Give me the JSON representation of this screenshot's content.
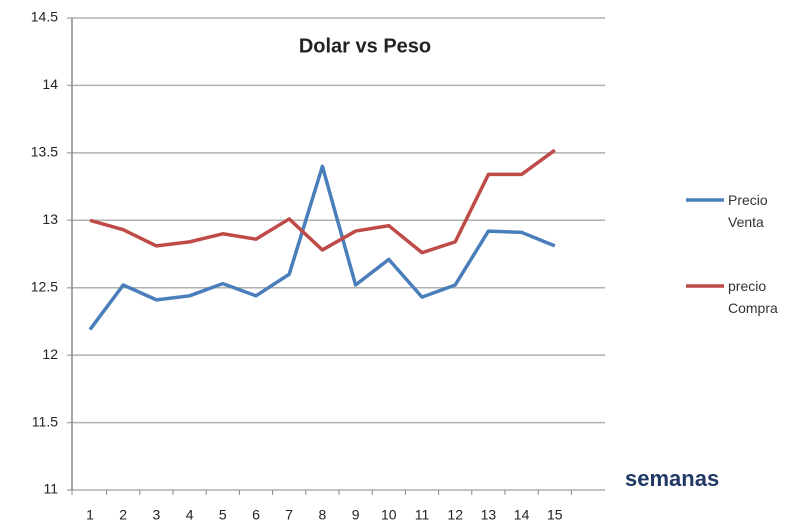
{
  "chart_data": {
    "type": "line",
    "title": "Dolar vs Peso",
    "x_label": "semanas",
    "categories": [
      "1",
      "2",
      "3",
      "4",
      "5",
      "6",
      "7",
      "8",
      "9",
      "10",
      "11",
      "12",
      "13",
      "14",
      "15"
    ],
    "series": [
      {
        "name": "Precio Venta",
        "color": "#4a7ebb",
        "values": [
          12.19,
          12.52,
          12.41,
          12.44,
          12.53,
          12.44,
          12.6,
          13.4,
          12.52,
          12.71,
          12.43,
          12.52,
          12.92,
          12.91,
          12.81
        ]
      },
      {
        "name": "precio Compra",
        "color": "#be4b48",
        "values": [
          13.0,
          12.93,
          12.81,
          12.84,
          12.9,
          12.86,
          13.01,
          12.78,
          12.92,
          12.96,
          12.76,
          12.84,
          13.34,
          13.34,
          13.52
        ]
      }
    ],
    "ylim": [
      11,
      14.5
    ],
    "yticks": [
      11,
      11.5,
      12,
      12.5,
      13,
      13.5,
      14,
      14.5
    ],
    "grid": true,
    "legend": "right"
  }
}
